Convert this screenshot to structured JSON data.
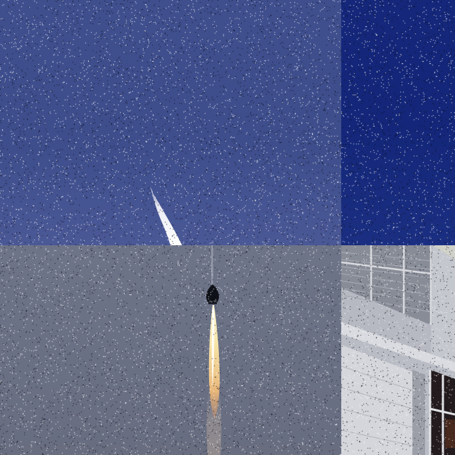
{
  "image": {
    "kind": "photo-collage",
    "tiles": [
      {
        "name": "sky-with-rocket-trail",
        "dominant_color": "#3e4e8c"
      },
      {
        "name": "deep-blue-sky",
        "dominant_color": "#142779"
      },
      {
        "name": "rocket-launch-grey-sky",
        "dominant_color": "#6b7185"
      },
      {
        "name": "building-facade",
        "dominant_color": "#b9bcc4"
      }
    ],
    "noise": "salt-and-pepper"
  }
}
